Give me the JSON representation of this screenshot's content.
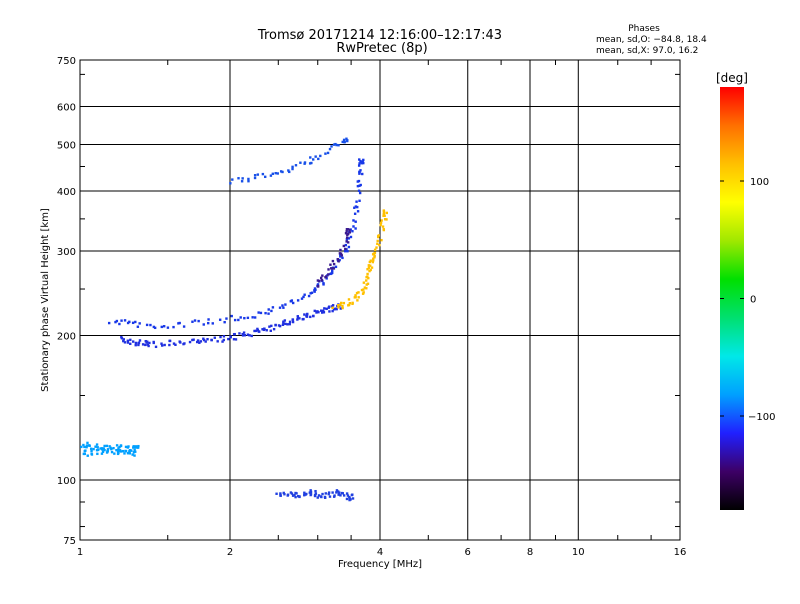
{
  "chart_data": {
    "type": "scatter",
    "title": "Tromsø 20171214 12:16:00–12:17:43",
    "subtitle": "RwPretec (8p)",
    "stats_title": "Phases",
    "stats_line1": "mean, sd,O: −84.8, 18.4",
    "stats_line2": "mean, sd,X:  97.0, 16.2",
    "xlabel": "Frequency [MHz]",
    "ylabel": "Stationary phase Virtual Height [km]",
    "x_scale": "log",
    "y_scale": "log",
    "xlim": [
      1,
      16
    ],
    "ylim": [
      75,
      750
    ],
    "x_ticks": [
      1,
      2,
      4,
      6,
      8,
      10,
      16
    ],
    "y_ticks": [
      75,
      100,
      200,
      300,
      400,
      500,
      600,
      750
    ],
    "grid": true,
    "colorbar": {
      "label": "[deg]",
      "range": [
        -180,
        180
      ],
      "ticks": [
        100,
        0,
        -100
      ],
      "colors": [
        "#000000",
        "#3d0066",
        "#2020ff",
        "#00a0ff",
        "#00e8e8",
        "#00e070",
        "#00e000",
        "#a0e800",
        "#ffff00",
        "#ffc000",
        "#ff7000",
        "#ff0000"
      ]
    },
    "series": [
      {
        "trace": "low_band",
        "x": [
          1.0,
          1.05,
          1.1,
          1.15,
          1.2,
          1.25,
          1.3,
          1.0,
          1.05,
          1.1,
          1.15,
          1.2,
          1.25,
          1.3
        ],
        "y": [
          114,
          114,
          115,
          115,
          114,
          114,
          114,
          117,
          118,
          117,
          116,
          117,
          116,
          116
        ],
        "color": "#00a0ff"
      },
      {
        "trace": "e_f1_layer",
        "x": [
          1.2,
          1.25,
          1.3,
          1.35,
          1.4,
          1.5,
          1.6,
          1.7,
          1.8,
          1.9,
          2.0,
          2.1,
          2.2,
          2.3,
          2.4,
          2.5,
          2.6,
          2.7,
          2.8,
          2.9,
          3.0,
          3.1,
          3.2,
          3.3
        ],
        "y": [
          196,
          194,
          193,
          192,
          191,
          192,
          193,
          194,
          195,
          196,
          198,
          200,
          202,
          204,
          207,
          210,
          213,
          216,
          219,
          221,
          224,
          226,
          228,
          230
        ],
        "color": "#2030e0"
      },
      {
        "trace": "o_mode_f_layer",
        "x": [
          1.15,
          1.25,
          1.35,
          1.5,
          1.7,
          1.9,
          2.1,
          2.3,
          2.5,
          2.7,
          2.9,
          3.0,
          3.1,
          3.2,
          3.3,
          3.4,
          3.5,
          3.55,
          3.6,
          3.62,
          3.65,
          3.67
        ],
        "y": [
          215,
          212,
          210,
          210,
          212,
          215,
          218,
          222,
          228,
          236,
          245,
          252,
          262,
          272,
          285,
          300,
          320,
          345,
          375,
          410,
          440,
          460
        ],
        "color": "#1838e8"
      },
      {
        "trace": "o_mode_purple",
        "x": [
          3.0,
          3.1,
          3.2,
          3.3,
          3.4,
          3.45
        ],
        "y": [
          255,
          265,
          275,
          290,
          310,
          330
        ],
        "color": "#3a1a90"
      },
      {
        "trace": "x_mode_f_layer",
        "x": [
          3.25,
          3.4,
          3.5,
          3.6,
          3.7,
          3.75,
          3.8,
          3.85,
          3.9,
          3.95,
          4.0,
          4.05,
          4.1
        ],
        "y": [
          228,
          232,
          236,
          242,
          250,
          260,
          270,
          280,
          290,
          300,
          320,
          340,
          360
        ],
        "color": "#ffc000"
      },
      {
        "trace": "f_layer_upper",
        "x": [
          2.0,
          2.2,
          2.4,
          2.6,
          2.8,
          3.0,
          3.2,
          3.4
        ],
        "y": [
          420,
          425,
          430,
          440,
          455,
          470,
          490,
          510
        ],
        "color": "#1850e8"
      },
      {
        "trace": "bottom_band",
        "x": [
          2.5,
          2.6,
          2.7,
          2.8,
          2.9,
          3.0,
          3.1,
          3.2,
          3.3,
          3.4,
          3.5
        ],
        "y": [
          94,
          93,
          93,
          93,
          94,
          93,
          93,
          93,
          94,
          93,
          92
        ],
        "color": "#2040e0"
      }
    ]
  }
}
